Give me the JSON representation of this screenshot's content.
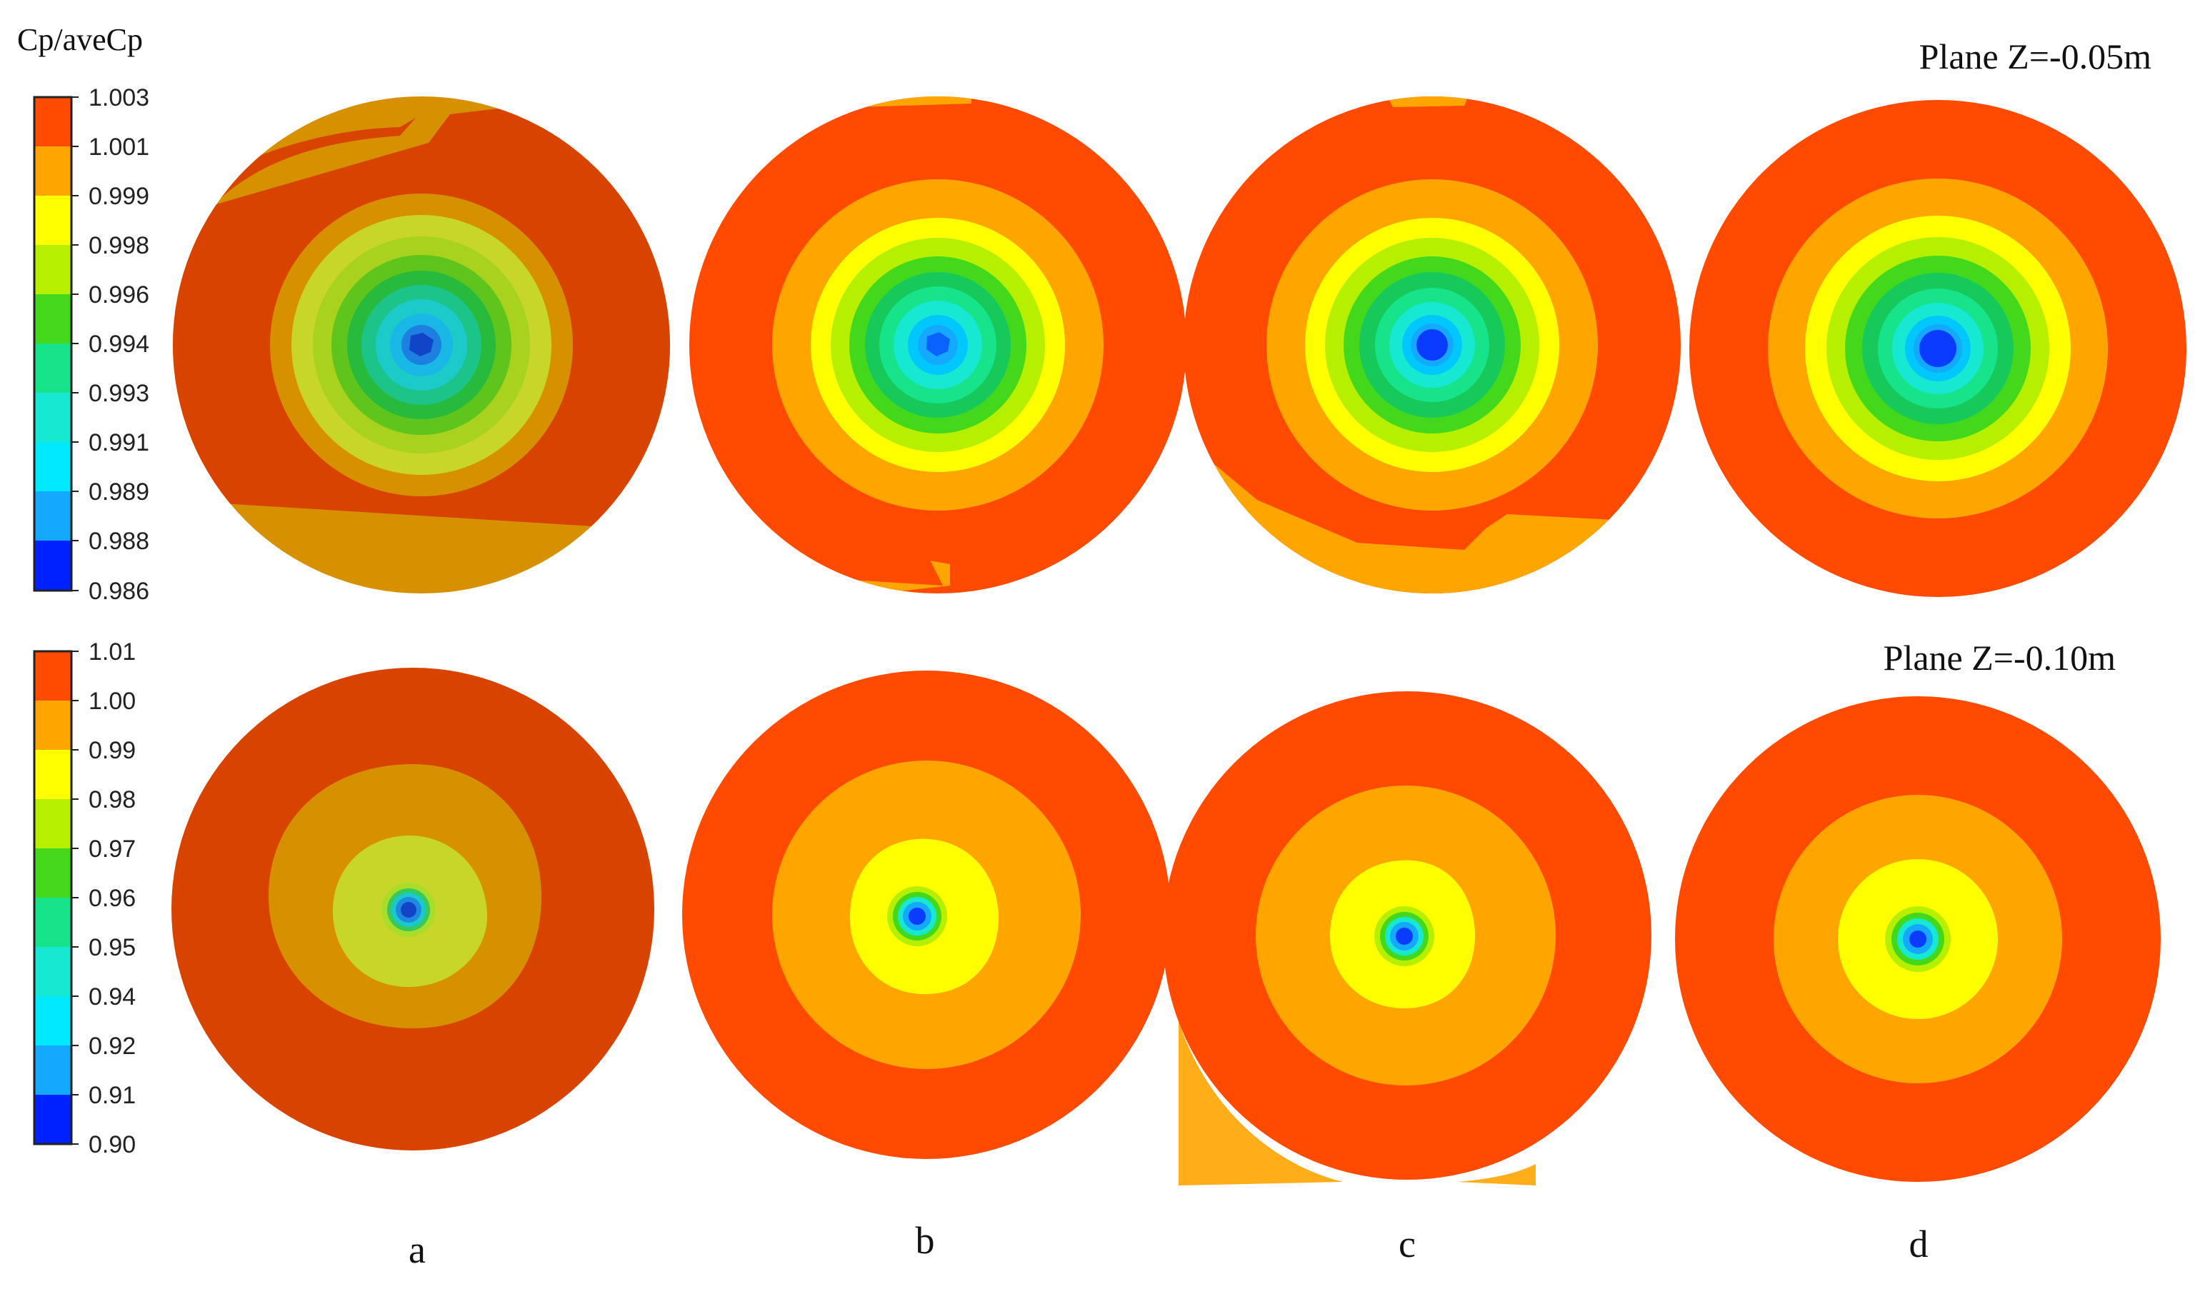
{
  "figure": {
    "legend_title": "Cp/aveCp",
    "panel_labels": [
      "a",
      "b",
      "c",
      "d"
    ],
    "rows": [
      {
        "plane_label": "Plane Z=-0.05m",
        "scale_labels": [
          "1.003",
          "1.001",
          "0.999",
          "0.998",
          "0.996",
          "0.994",
          "0.993",
          "0.991",
          "0.989",
          "0.988",
          "0.986"
        ]
      },
      {
        "plane_label": "Plane Z=-0.10m",
        "scale_labels": [
          "1.01",
          "1.00",
          "0.99",
          "0.98",
          "0.97",
          "0.96",
          "0.95",
          "0.94",
          "0.92",
          "0.91",
          "0.90"
        ]
      }
    ]
  },
  "colors": {
    "levels_top_to_bottom": [
      "#ff4a00",
      "#ffa500",
      "#ffff00",
      "#b6f000",
      "#44d81c",
      "#16e38a",
      "#16e8d2",
      "#00e9ff",
      "#14a9ff",
      "#0a63ff",
      "#0021ff"
    ],
    "muted_levels": {
      "outer": "#d84300",
      "ring2": "#d69000",
      "ring3": "#c8d62a"
    }
  }
}
